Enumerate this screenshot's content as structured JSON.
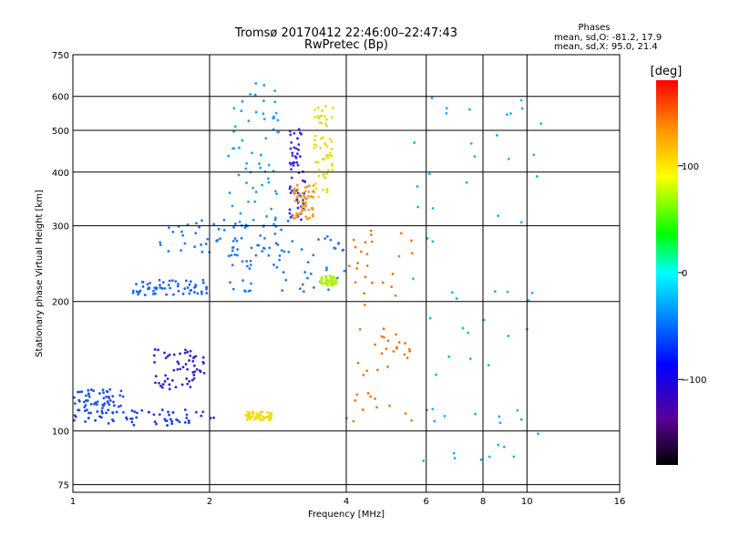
{
  "chart_data": {
    "type": "scatter",
    "title": "Tromsø 20170412 22:46:00–22:47:43",
    "subtitle": "RwPretec (Bp)",
    "xlabel": "Frequency [MHz]",
    "ylabel": "Stationary phase Virtual Height [km]",
    "x_scale": "log",
    "y_scale": "log",
    "xlim": [
      1,
      16
    ],
    "ylim": [
      72,
      750
    ],
    "x_ticks": [
      1,
      2,
      4,
      6,
      8,
      10,
      16
    ],
    "y_ticks": [
      75,
      100,
      200,
      300,
      400,
      500,
      600,
      750
    ],
    "grid": true,
    "phase_info": {
      "title": "Phases",
      "line1": "mean, sd,O: -81.2, 17.9",
      "line2": "mean, sd,X:  95.0, 21.4"
    },
    "colorbar": {
      "label": "[deg]",
      "range": [
        -180,
        180
      ],
      "tick_labels": [
        "100",
        "0",
        "−100"
      ],
      "tick_values": [
        100,
        0,
        -100
      ],
      "colormap": "rainbow (black–purple–blue–cyan–green–yellow–red)"
    },
    "series": [
      {
        "x_range": [
          1.0,
          2.05
        ],
        "height_range": [
          103,
          112
        ],
        "phase_approx": -100,
        "color": "#1e3ce6"
      },
      {
        "x_range": [
          1.0,
          1.3
        ],
        "height_range": [
          110,
          125
        ],
        "phase_approx": -95,
        "color": "#1e50f0"
      },
      {
        "x_range": [
          1.5,
          1.95
        ],
        "height_range": [
          125,
          155
        ],
        "phase_approx": -110,
        "color": "#3c1ed2"
      },
      {
        "x_range": [
          1.35,
          2.0
        ],
        "height_range": [
          207,
          225
        ],
        "phase_approx": -90,
        "color": "#1e64f0"
      },
      {
        "x_range": [
          1.55,
          3.0
        ],
        "height_range": [
          255,
          310
        ],
        "phase_approx": -85,
        "color": "#1e78f5"
      },
      {
        "x_range": [
          2.2,
          2.85
        ],
        "height_range": [
          300,
          660
        ],
        "phase_approx": -70,
        "color": "#1ea0f5"
      },
      {
        "x_range": [
          3.0,
          3.25
        ],
        "height_range": [
          310,
          520
        ],
        "phase_approx": -95,
        "color": "#3c28e6"
      },
      {
        "x_range": [
          3.05,
          3.4
        ],
        "height_range": [
          310,
          375
        ],
        "phase_approx": 120,
        "color": "#f0a01e"
      },
      {
        "x_range": [
          3.4,
          3.75
        ],
        "height_range": [
          350,
          580
        ],
        "phase_approx": 100,
        "color": "#e6dc14"
      },
      {
        "x_range": [
          2.4,
          2.75
        ],
        "height_range": [
          106,
          111
        ],
        "phase_approx": 100,
        "color": "#f0dc14"
      },
      {
        "x_range": [
          2.2,
          4.0
        ],
        "height_range": [
          210,
          285
        ],
        "phase_approx": -80,
        "color": "#2878f0"
      },
      {
        "x_range": [
          3.5,
          3.8
        ],
        "height_range": [
          218,
          230
        ],
        "phase_approx": 80,
        "color": "#b4f01e"
      },
      {
        "x_range": [
          4.0,
          5.6
        ],
        "height_range": [
          105,
          320
        ],
        "phase_approx": 140,
        "color": "#f07814"
      },
      {
        "x_range": [
          5.5,
          11.0
        ],
        "height_range": [
          85,
          600
        ],
        "phase_approx": -60,
        "color": "#14b4f0"
      }
    ]
  }
}
